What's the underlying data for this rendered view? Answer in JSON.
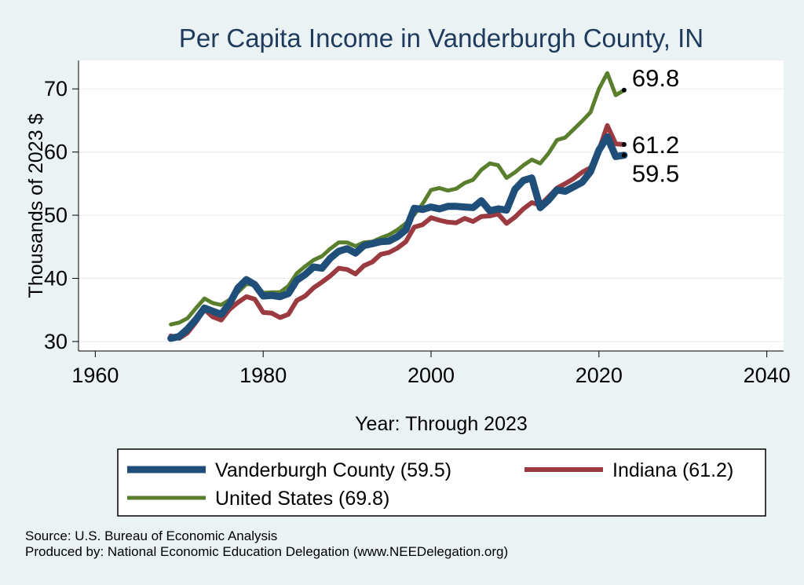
{
  "chart_data": {
    "type": "line",
    "title": "Per Capita Income in Vanderburgh County, IN",
    "xlabel": "Year: Through 2023",
    "ylabel": "Thousands of 2023 $",
    "xlim": [
      1958,
      2042
    ],
    "ylim": [
      28.5,
      74.5
    ],
    "xticks": [
      1960,
      1980,
      2000,
      2020,
      2040
    ],
    "yticks": [
      30,
      40,
      50,
      60,
      70
    ],
    "grid": true,
    "legend_position": "bottom",
    "x": [
      1969,
      1970,
      1971,
      1972,
      1973,
      1974,
      1975,
      1976,
      1977,
      1978,
      1979,
      1980,
      1981,
      1982,
      1983,
      1984,
      1985,
      1986,
      1987,
      1988,
      1989,
      1990,
      1991,
      1992,
      1993,
      1994,
      1995,
      1996,
      1997,
      1998,
      1999,
      2000,
      2001,
      2002,
      2003,
      2004,
      2005,
      2006,
      2007,
      2008,
      2009,
      2010,
      2011,
      2012,
      2013,
      2014,
      2015,
      2016,
      2017,
      2018,
      2019,
      2020,
      2021,
      2022,
      2023
    ],
    "series": [
      {
        "name": "Vanderburgh County (59.5)",
        "color": "#1f4e79",
        "end_label": "59.5",
        "values": [
          30.5,
          30.8,
          32.0,
          33.5,
          35.3,
          34.8,
          34.3,
          36.0,
          38.5,
          39.8,
          39.0,
          37.2,
          37.3,
          37.1,
          37.6,
          39.7,
          40.6,
          41.8,
          41.6,
          43.2,
          44.3,
          44.7,
          44.0,
          45.2,
          45.5,
          45.8,
          45.9,
          46.6,
          47.7,
          51.1,
          50.9,
          51.3,
          51.0,
          51.4,
          51.4,
          51.3,
          51.2,
          52.3,
          50.7,
          51.0,
          50.8,
          54.1,
          55.5,
          55.9,
          51.2,
          52.4,
          54.0,
          53.8,
          54.5,
          55.2,
          56.9,
          60.3,
          62.4,
          59.3,
          59.5
        ]
      },
      {
        "name": "Indiana (61.2)",
        "color": "#9b3a40",
        "end_label": "61.2",
        "values": [
          30.9,
          30.5,
          31.4,
          33.1,
          35.1,
          33.9,
          33.4,
          35.1,
          36.2,
          37.1,
          36.7,
          34.6,
          34.5,
          33.8,
          34.3,
          36.5,
          37.2,
          38.5,
          39.4,
          40.4,
          41.6,
          41.4,
          40.7,
          42.0,
          42.6,
          43.8,
          44.1,
          44.8,
          45.8,
          48.1,
          48.5,
          49.6,
          49.2,
          48.9,
          48.8,
          49.5,
          49.0,
          49.8,
          49.9,
          50.2,
          48.7,
          49.7,
          51.0,
          52.0,
          51.6,
          52.9,
          54.3,
          55.0,
          55.8,
          56.8,
          57.5,
          60.3,
          64.2,
          61.3,
          61.2
        ]
      },
      {
        "name": "United States (69.8)",
        "color": "#5a7f2c",
        "end_label": "69.8",
        "values": [
          32.7,
          33.0,
          33.7,
          35.3,
          36.8,
          36.1,
          35.8,
          36.6,
          37.8,
          39.1,
          39.0,
          37.7,
          37.8,
          37.8,
          38.8,
          40.8,
          41.9,
          42.9,
          43.5,
          44.7,
          45.7,
          45.7,
          45.1,
          45.7,
          45.8,
          46.4,
          46.9,
          47.7,
          48.7,
          50.1,
          51.8,
          54.0,
          54.3,
          53.9,
          54.2,
          55.1,
          55.6,
          57.2,
          58.2,
          57.9,
          55.9,
          56.8,
          57.9,
          58.8,
          58.2,
          59.8,
          61.9,
          62.3,
          63.6,
          64.9,
          66.3,
          70.0,
          72.5,
          69.0,
          69.8
        ]
      }
    ]
  },
  "legend": {
    "items": [
      "Vanderburgh County (59.5)",
      "Indiana (61.2)",
      "United States (69.8)"
    ]
  },
  "source": {
    "line1": "Source: U.S. Bureau of Economic Analysis",
    "line2": "Produced by: National Economic Education Delegation (www.NEEDelegation.org)"
  }
}
